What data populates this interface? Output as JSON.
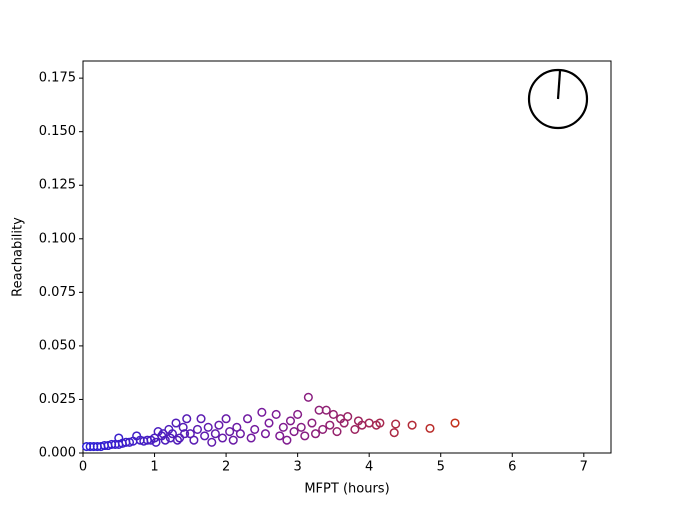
{
  "chart_data": {
    "type": "scatter",
    "xlabel": "MFPT (hours)",
    "ylabel": "Reachability",
    "xlim": [
      0,
      7.38
    ],
    "ylim": [
      0,
      0.183
    ],
    "xticks": [
      0,
      1,
      2,
      3,
      4,
      5,
      6,
      7
    ],
    "yticks": [
      {
        "value": 0,
        "label": "0.000"
      },
      {
        "value": 0.025,
        "label": "0.025"
      },
      {
        "value": 0.05,
        "label": "0.050"
      },
      {
        "value": 0.075,
        "label": "0.075"
      },
      {
        "value": 0.1,
        "label": "0.100"
      },
      {
        "value": 0.125,
        "label": "0.125"
      },
      {
        "value": 0.15,
        "label": "0.150"
      },
      {
        "value": 0.175,
        "label": "0.175"
      }
    ],
    "colormap": [
      "#2b1fd6",
      "#7a1a9a",
      "#c4301a"
    ],
    "x": [
      0.05,
      0.1,
      0.15,
      0.2,
      0.25,
      0.3,
      0.35,
      0.4,
      0.45,
      0.5,
      0.5,
      0.55,
      0.6,
      0.65,
      0.7,
      0.75,
      0.8,
      0.85,
      0.9,
      0.95,
      1.0,
      1.02,
      1.05,
      1.1,
      1.12,
      1.15,
      1.2,
      1.22,
      1.25,
      1.3,
      1.32,
      1.35,
      1.4,
      1.42,
      1.45,
      1.5,
      1.55,
      1.6,
      1.65,
      1.7,
      1.75,
      1.8,
      1.85,
      1.9,
      1.95,
      2.0,
      2.05,
      2.1,
      2.15,
      2.2,
      2.3,
      2.35,
      2.4,
      2.5,
      2.55,
      2.6,
      2.7,
      2.75,
      2.8,
      2.85,
      2.9,
      2.95,
      3.0,
      3.05,
      3.1,
      3.15,
      3.2,
      3.25,
      3.3,
      3.35,
      3.4,
      3.45,
      3.5,
      3.55,
      3.6,
      3.65,
      3.7,
      3.8,
      3.85,
      3.9,
      4.0,
      4.1,
      4.15,
      4.35,
      4.37,
      4.6,
      4.85,
      5.2
    ],
    "y": [
      0.003,
      0.003,
      0.003,
      0.003,
      0.003,
      0.0035,
      0.0035,
      0.004,
      0.004,
      0.007,
      0.004,
      0.0045,
      0.005,
      0.005,
      0.0055,
      0.008,
      0.006,
      0.0055,
      0.006,
      0.006,
      0.007,
      0.005,
      0.01,
      0.008,
      0.009,
      0.006,
      0.011,
      0.007,
      0.009,
      0.014,
      0.006,
      0.007,
      0.012,
      0.009,
      0.016,
      0.009,
      0.006,
      0.011,
      0.016,
      0.008,
      0.012,
      0.005,
      0.009,
      0.013,
      0.007,
      0.016,
      0.01,
      0.006,
      0.012,
      0.009,
      0.016,
      0.007,
      0.011,
      0.019,
      0.009,
      0.014,
      0.018,
      0.008,
      0.012,
      0.006,
      0.015,
      0.01,
      0.018,
      0.012,
      0.008,
      0.026,
      0.014,
      0.009,
      0.02,
      0.011,
      0.02,
      0.013,
      0.018,
      0.01,
      0.016,
      0.014,
      0.017,
      0.011,
      0.015,
      0.013,
      0.014,
      0.013,
      0.014,
      0.0095,
      0.0135,
      0.013,
      0.0115,
      0.014
    ]
  }
}
